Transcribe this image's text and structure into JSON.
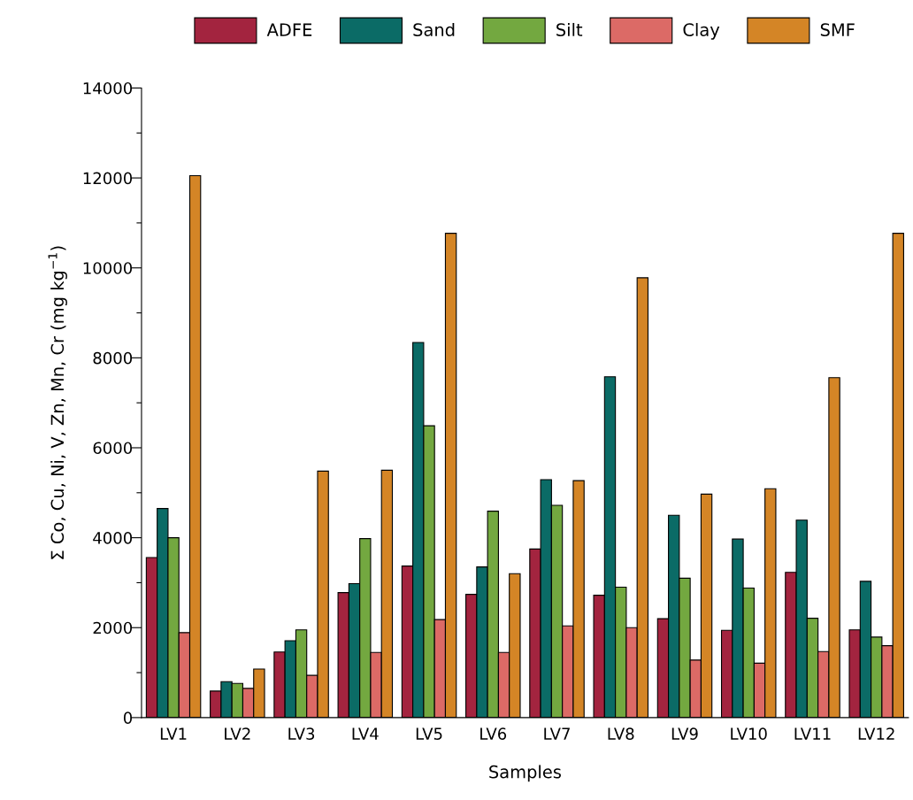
{
  "chart_data": {
    "type": "bar",
    "xlabel": "Samples",
    "ylabel": "Σ Co, Cu, Ni, V, Zn, Mn, Cr (mg kg$^{−1}$)",
    "categories": [
      "LV1",
      "LV2",
      "LV3",
      "LV4",
      "LV5",
      "LV6",
      "LV7",
      "LV8",
      "LV9",
      "LV10",
      "LV11",
      "LV12"
    ],
    "series": [
      {
        "name": "ADFE",
        "color": "#a3243f",
        "values": [
          3560,
          590,
          1460,
          2780,
          3370,
          2740,
          3750,
          2720,
          2200,
          1940,
          3230,
          1950
        ]
      },
      {
        "name": "Sand",
        "color": "#0b6b66",
        "values": [
          4650,
          800,
          1710,
          2980,
          8340,
          3350,
          5290,
          7580,
          4500,
          3970,
          4390,
          3030
        ]
      },
      {
        "name": "Silt",
        "color": "#73a840",
        "values": [
          4000,
          760,
          1950,
          3980,
          6490,
          4590,
          4720,
          2900,
          3100,
          2880,
          2210,
          1790
        ]
      },
      {
        "name": "Clay",
        "color": "#dc6a66",
        "values": [
          1890,
          650,
          940,
          1450,
          2180,
          1450,
          2040,
          2000,
          1280,
          1210,
          1470,
          1600
        ]
      },
      {
        "name": "SMF",
        "color": "#d48526",
        "values": [
          12050,
          1080,
          5480,
          5500,
          10770,
          3200,
          5270,
          9780,
          4970,
          5090,
          7560,
          10770
        ]
      }
    ],
    "ylim": [
      0,
      14000
    ],
    "yticks": [
      0,
      {
        "value": 1000,
        "label": null
      },
      2000,
      {
        "value": 3000,
        "label": null
      },
      4000,
      {
        "value": 5000,
        "label": null
      },
      6000,
      {
        "value": 7000,
        "label": null
      },
      8000,
      {
        "value": 9000,
        "label": null
      },
      10000,
      {
        "value": 11000,
        "label": null
      },
      12000,
      {
        "value": 13000,
        "label": null
      },
      14000
    ],
    "grid": false,
    "legend": "top"
  }
}
